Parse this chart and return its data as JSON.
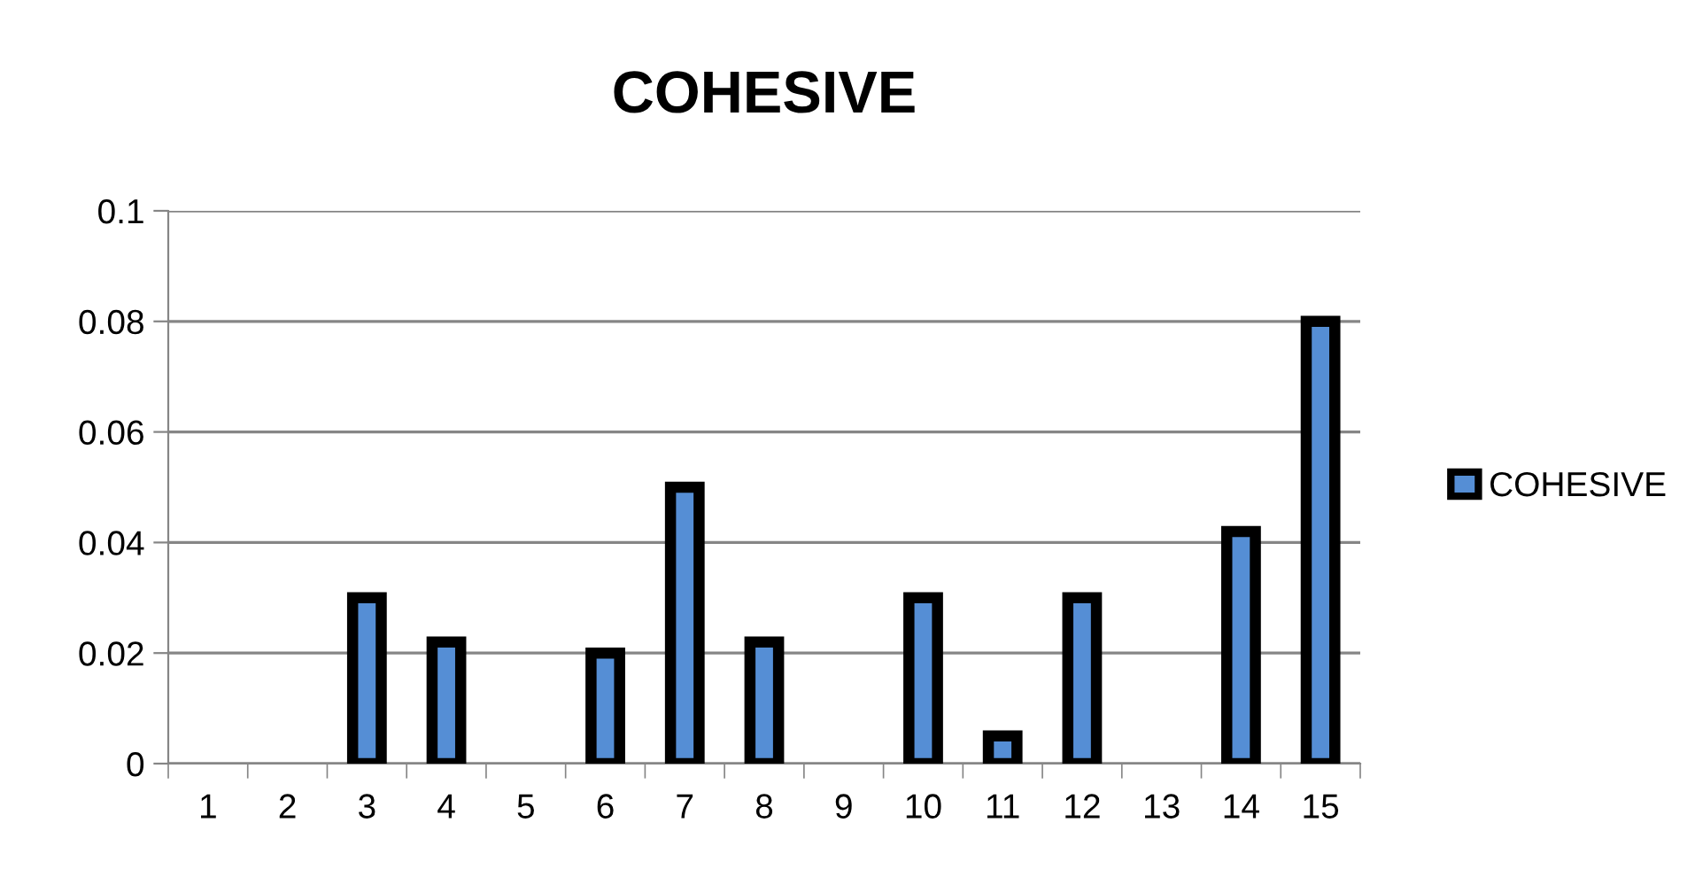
{
  "chart_data": {
    "type": "bar",
    "title": "COHESIVE",
    "categories": [
      "1",
      "2",
      "3",
      "4",
      "5",
      "6",
      "7",
      "8",
      "9",
      "10",
      "11",
      "12",
      "13",
      "14",
      "15"
    ],
    "series": [
      {
        "name": "COHESIVE",
        "color": "#558ed5",
        "values": [
          null,
          null,
          0.03,
          0.022,
          null,
          0.02,
          0.05,
          0.022,
          null,
          0.03,
          0.005,
          0.03,
          null,
          0.042,
          0.08
        ]
      }
    ],
    "ylim": [
      0,
      0.1
    ],
    "yticks": [
      0,
      0.02,
      0.04,
      0.06,
      0.08,
      0.1
    ],
    "grid": "y",
    "legend": "right"
  }
}
